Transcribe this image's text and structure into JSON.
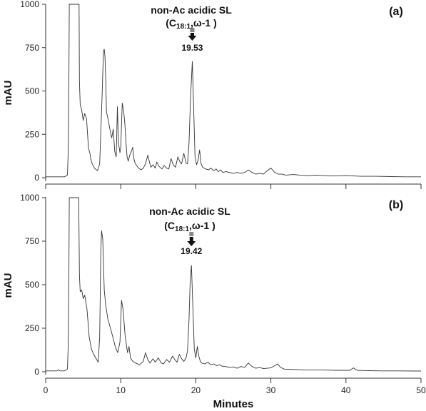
{
  "chart_data": [
    {
      "type": "line",
      "panel_label": "(a)",
      "ylabel": "mAU",
      "xlabel": "",
      "xlim": [
        0,
        50
      ],
      "ylim": [
        0,
        1000
      ],
      "y_ticks": [
        "0",
        "250",
        "500",
        "750",
        "1000"
      ],
      "x_ticks": [],
      "annotation": {
        "line1": "non-Ac acidic SL",
        "line2_open": "(C",
        "line2_sub": "18:1",
        "line2_close": ",ω-1 )"
      },
      "peak_label": "19.53",
      "peak_x": 19.53,
      "series": [
        {
          "x": [
            0,
            2.5,
            2.9,
            3.0,
            3.1,
            3.15,
            3.2,
            3.4,
            3.7,
            4.0,
            4.3,
            4.45,
            4.5,
            4.6,
            4.8,
            5.0,
            5.2,
            5.45,
            5.7,
            5.9,
            6.0,
            6.2,
            6.5,
            6.9,
            7.2,
            7.5,
            7.7,
            7.8,
            7.9,
            8.0,
            8.1,
            8.3,
            8.6,
            8.8,
            9.0,
            9.2,
            9.4,
            9.55,
            9.7,
            9.9,
            10.0,
            10.2,
            10.4,
            10.55,
            10.7,
            10.85,
            11.0,
            11.2,
            11.4,
            11.6,
            11.75,
            11.9,
            12.1,
            12.4,
            12.7,
            13.0,
            13.3,
            13.6,
            13.8,
            14.0,
            14.3,
            14.6,
            14.8,
            15.1,
            15.5,
            15.8,
            16.1,
            16.4,
            16.7,
            17.0,
            17.3,
            17.6,
            17.9,
            18.1,
            18.4,
            18.7,
            18.9,
            19.1,
            19.3,
            19.53,
            19.7,
            19.9,
            20.1,
            20.3,
            20.5,
            20.7,
            20.9,
            21.3,
            21.7,
            22.0,
            22.4,
            22.7,
            23.0,
            23.3,
            23.6,
            24.0,
            24.5,
            25.0,
            25.5,
            26.0,
            26.5,
            27.0,
            27.5,
            28.0,
            28.5,
            29.0,
            29.5,
            30.0,
            30.5,
            31.0,
            31.5,
            32.0,
            33.0,
            34.0,
            35.0,
            36.0,
            38.0,
            40.0,
            42.0,
            44.0,
            46.0,
            48.0,
            50.0
          ],
          "y": [
            5,
            5,
            15,
            150,
            600,
            1000,
            1000,
            1000,
            1000,
            1000,
            1000,
            1000,
            560,
            420,
            390,
            330,
            370,
            340,
            170,
            140,
            110,
            80,
            55,
            40,
            80,
            450,
            730,
            740,
            700,
            560,
            380,
            340,
            270,
            230,
            280,
            150,
            120,
            410,
            200,
            145,
            170,
            430,
            380,
            310,
            200,
            120,
            95,
            130,
            150,
            175,
            110,
            85,
            70,
            55,
            45,
            55,
            80,
            130,
            95,
            60,
            75,
            55,
            90,
            65,
            50,
            70,
            55,
            50,
            110,
            75,
            60,
            120,
            90,
            80,
            140,
            85,
            80,
            200,
            460,
            670,
            430,
            120,
            75,
            100,
            160,
            80,
            60,
            50,
            45,
            55,
            40,
            50,
            35,
            45,
            30,
            35,
            30,
            25,
            30,
            25,
            30,
            45,
            30,
            20,
            25,
            20,
            40,
            55,
            30,
            20,
            20,
            15,
            18,
            14,
            12,
            15,
            10,
            12,
            8,
            8,
            6,
            5,
            5
          ]
        }
      ]
    },
    {
      "type": "line",
      "panel_label": "(b)",
      "ylabel": "mAU",
      "xlabel": "Minutes",
      "xlim": [
        0,
        50
      ],
      "ylim": [
        0,
        1000
      ],
      "y_ticks": [
        "0",
        "250",
        "500",
        "750",
        "1000"
      ],
      "x_ticks": [
        "0",
        "10",
        "20",
        "30",
        "40",
        "50"
      ],
      "annotation": {
        "line1": "non-Ac acidic SL",
        "line2_open": "(C",
        "line2_sub": "18:1",
        "line2_close": ",ω-1 )"
      },
      "peak_label": "19.42",
      "peak_x": 19.42,
      "series": [
        {
          "x": [
            0,
            1.5,
            1.7,
            1.9,
            2.5,
            2.9,
            3.0,
            3.1,
            3.15,
            3.2,
            3.4,
            3.7,
            4.0,
            4.3,
            4.4,
            4.5,
            4.6,
            4.8,
            5.0,
            5.2,
            5.5,
            5.8,
            6.1,
            6.4,
            6.8,
            7.0,
            7.2,
            7.35,
            7.45,
            7.6,
            7.8,
            8.0,
            8.3,
            8.7,
            9.0,
            9.3,
            9.6,
            9.9,
            10.1,
            10.3,
            10.6,
            10.9,
            11.1,
            11.3,
            11.6,
            12.0,
            12.5,
            13.0,
            13.3,
            13.6,
            13.9,
            14.3,
            14.6,
            15.0,
            15.4,
            15.7,
            16.1,
            16.5,
            16.9,
            17.2,
            17.5,
            17.8,
            18.1,
            18.4,
            18.7,
            18.9,
            19.1,
            19.25,
            19.42,
            19.6,
            19.8,
            20.0,
            20.2,
            20.4,
            20.6,
            20.8,
            21.2,
            21.6,
            22.0,
            22.4,
            22.8,
            23.2,
            23.6,
            24.0,
            24.5,
            25.0,
            25.5,
            26.0,
            26.5,
            27.0,
            27.5,
            28.0,
            28.5,
            29.0,
            29.5,
            30.0,
            30.5,
            30.9,
            31.3,
            31.8,
            32.5,
            33.5,
            35.0,
            37.0,
            39.0,
            40.5,
            41.0,
            41.5,
            43.0,
            45.0,
            47.0,
            50.0
          ],
          "y": [
            5,
            5,
            12,
            5,
            5,
            15,
            150,
            600,
            1000,
            1000,
            1000,
            1000,
            1000,
            1000,
            1000,
            560,
            460,
            470,
            420,
            440,
            360,
            200,
            130,
            100,
            70,
            55,
            200,
            700,
            810,
            760,
            470,
            380,
            300,
            240,
            190,
            140,
            110,
            170,
            410,
            360,
            200,
            110,
            145,
            80,
            60,
            50,
            40,
            60,
            110,
            70,
            50,
            75,
            55,
            80,
            50,
            45,
            70,
            55,
            90,
            70,
            55,
            100,
            75,
            60,
            80,
            120,
            300,
            520,
            610,
            380,
            130,
            80,
            145,
            90,
            60,
            50,
            45,
            55,
            40,
            45,
            35,
            40,
            30,
            30,
            25,
            28,
            20,
            30,
            25,
            50,
            30,
            20,
            25,
            18,
            20,
            22,
            35,
            45,
            25,
            15,
            14,
            12,
            10,
            10,
            8,
            8,
            22,
            8,
            6,
            5,
            5,
            4
          ]
        }
      ]
    }
  ]
}
